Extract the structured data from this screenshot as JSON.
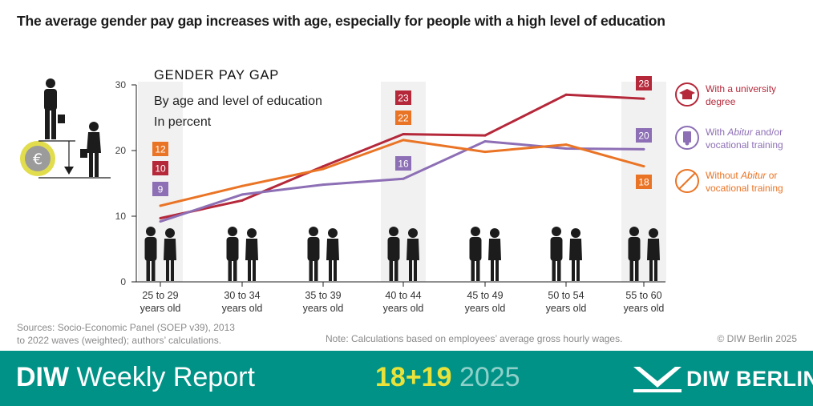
{
  "headline": "The average gender pay gap increases with age, especially for people with a high level of education",
  "chart_data": {
    "type": "line",
    "title": "GENDER PAY GAP",
    "subtitle_lines": [
      "By age and level of education",
      "In percent"
    ],
    "categories": [
      [
        "25 to 29",
        "years old"
      ],
      [
        "30 to 34",
        "years old"
      ],
      [
        "35 to 39",
        "years old"
      ],
      [
        "40 to 44",
        "years old"
      ],
      [
        "45 to 49",
        "years old"
      ],
      [
        "50 to 54",
        "years old"
      ],
      [
        "55 to 60",
        "years old"
      ]
    ],
    "ylim": [
      0,
      30
    ],
    "yticks": [
      "0",
      "10",
      "20",
      "30"
    ],
    "highlighted_categories": [
      0,
      3,
      6
    ],
    "series": [
      {
        "key": "university",
        "color": "#b5283a",
        "values": [
          9.7,
          12.4,
          17.6,
          22.5,
          22.3,
          28.5,
          27.9
        ],
        "labels": [
          {
            "index": 0,
            "text": "10"
          },
          {
            "index": 3,
            "text": "23"
          },
          {
            "index": 6,
            "text": "28"
          }
        ]
      },
      {
        "key": "abitur",
        "color": "#8d6fb5",
        "values": [
          9.2,
          13.3,
          14.8,
          15.7,
          21.4,
          20.3,
          20.2
        ],
        "labels": [
          {
            "index": 0,
            "text": "9"
          },
          {
            "index": 3,
            "text": "16"
          },
          {
            "index": 6,
            "text": "20"
          }
        ]
      },
      {
        "key": "without",
        "color": "#ea7425",
        "values": [
          11.6,
          14.6,
          17.2,
          21.6,
          19.8,
          20.9,
          17.6
        ],
        "labels": [
          {
            "index": 0,
            "text": "12"
          },
          {
            "index": 3,
            "text": "22"
          },
          {
            "index": 6,
            "text": "18"
          }
        ]
      }
    ],
    "legend": [
      {
        "key": "university",
        "color": "#b5283a",
        "icon": "graduation-cap-icon",
        "parts": [
          {
            "t": "With a university",
            "i": false
          },
          {
            "t": "degree",
            "i": false,
            "br": true
          }
        ]
      },
      {
        "key": "abitur",
        "color": "#8d6fb5",
        "icon": "certificate-icon",
        "parts": [
          {
            "t": "With ",
            "i": false
          },
          {
            "t": "Abitur",
            "i": true
          },
          {
            "t": " and/or",
            "i": false
          },
          {
            "t": "vocational training",
            "i": false,
            "br": true
          }
        ]
      },
      {
        "key": "without",
        "color": "#ea7425",
        "icon": "no-entry-icon",
        "parts": [
          {
            "t": "Without ",
            "i": false
          },
          {
            "t": "Abitur",
            "i": true
          },
          {
            "t": " or",
            "i": false
          },
          {
            "t": "vocational training",
            "i": false,
            "br": true
          }
        ]
      }
    ],
    "grid": false,
    "legend_position": "right"
  },
  "footer": {
    "sources_line1": "Sources: Socio-Economic Panel (SOEP v39), 2013",
    "sources_line2": "to 2022 waves (weighted); authors’ calculations.",
    "note": "Note: Calculations based on employees’ average gross hourly wages.",
    "copyright": "© DIW Berlin 2025"
  },
  "banner": {
    "brand": "DIW",
    "publication": "Weekly Report",
    "issue_numbers": "18+19",
    "issue_year": "2025",
    "logo_text": "DIW BERLIN",
    "background": "#009286",
    "issue_color": "#e8e23a"
  }
}
